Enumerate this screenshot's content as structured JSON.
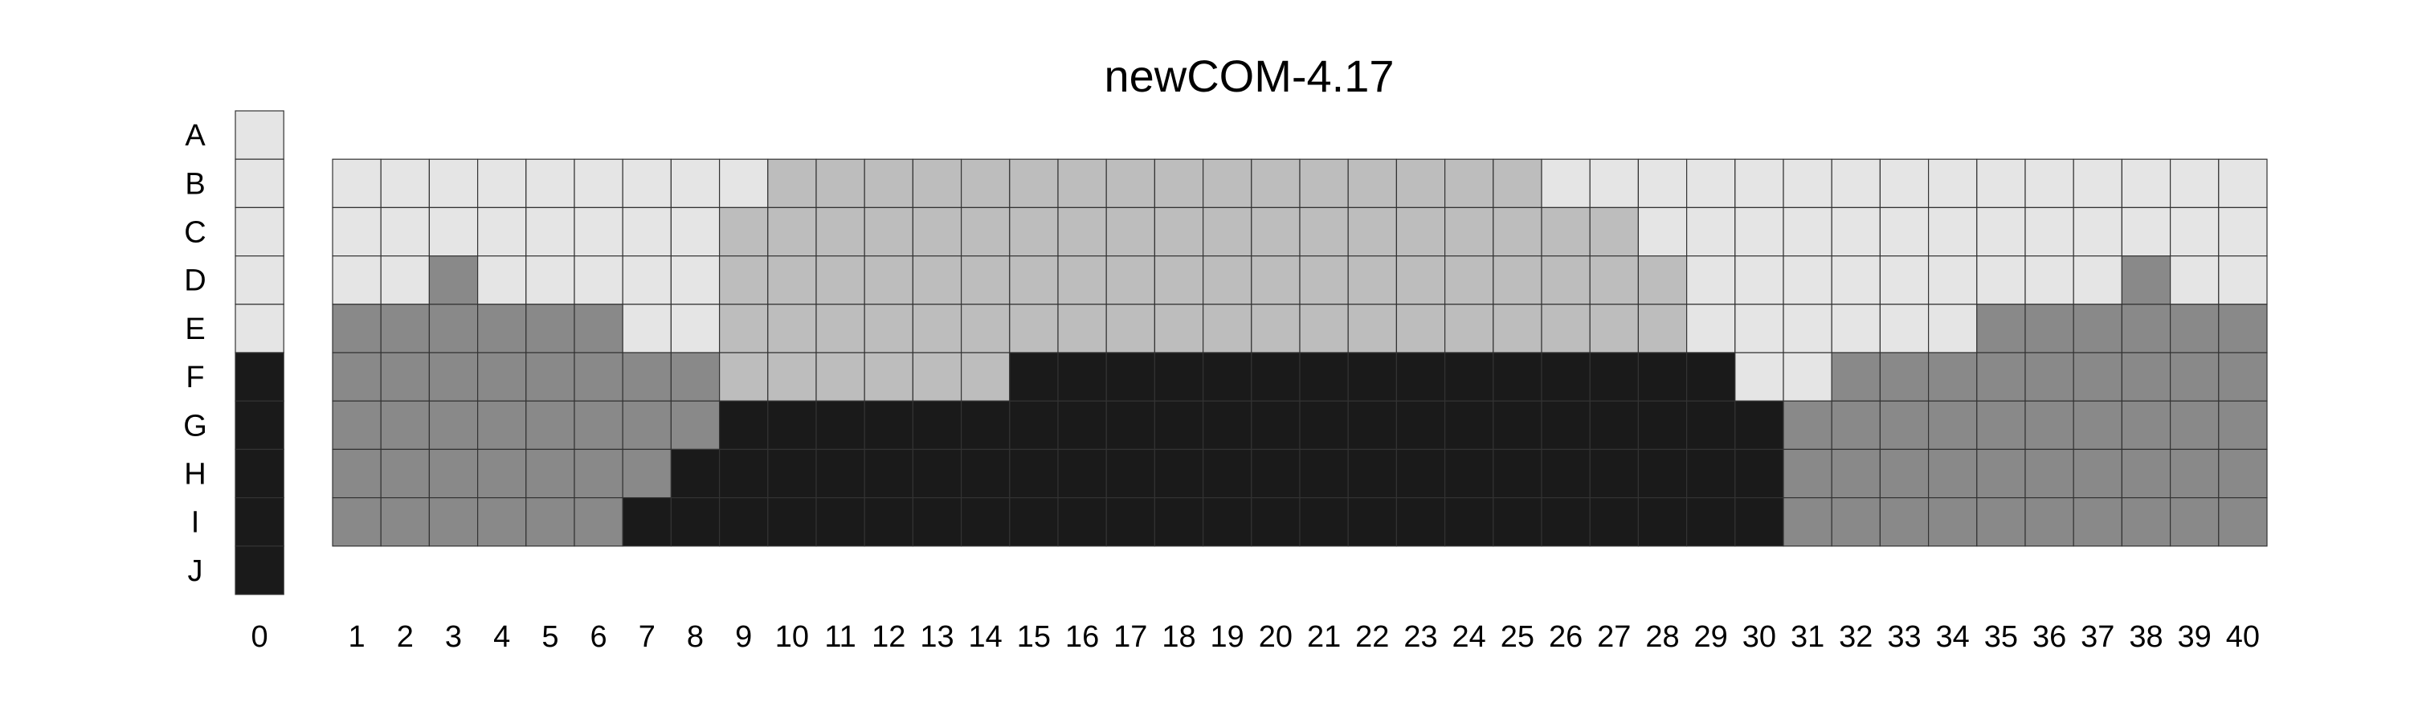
{
  "chart_data": {
    "type": "heatmap",
    "title": "newCOM-4.17",
    "row_labels": [
      "A",
      "B",
      "C",
      "D",
      "E",
      "F",
      "G",
      "H",
      "I",
      "J"
    ],
    "column_labels": [
      "1",
      "2",
      "3",
      "4",
      "5",
      "6",
      "7",
      "8",
      "9",
      "10",
      "11",
      "12",
      "13",
      "14",
      "15",
      "16",
      "17",
      "18",
      "19",
      "20",
      "21",
      "22",
      "23",
      "24",
      "25",
      "26",
      "27",
      "28",
      "29",
      "30",
      "31",
      "32",
      "33",
      "34",
      "35",
      "36",
      "37",
      "38",
      "39",
      "40"
    ],
    "legend_column_label": "0",
    "category_colors": {
      "1": "#e5e5e5",
      "2": "#bdbdbd",
      "3": "#898989",
      "4": "#1a1a1a"
    },
    "legend_column": [
      1,
      1,
      1,
      1,
      1,
      4,
      4,
      4,
      4,
      4
    ],
    "matrix_rows": [
      "B",
      "C",
      "D",
      "E",
      "F",
      "G",
      "H",
      "I"
    ],
    "matrix": [
      [
        1,
        1,
        1,
        1,
        1,
        1,
        1,
        1,
        1,
        2,
        2,
        2,
        2,
        2,
        2,
        2,
        2,
        2,
        2,
        2,
        2,
        2,
        2,
        2,
        2,
        1,
        1,
        1,
        1,
        1,
        1,
        1,
        1,
        1,
        1,
        1,
        1,
        1,
        1,
        1
      ],
      [
        1,
        1,
        1,
        1,
        1,
        1,
        1,
        1,
        2,
        2,
        2,
        2,
        2,
        2,
        2,
        2,
        2,
        2,
        2,
        2,
        2,
        2,
        2,
        2,
        2,
        2,
        2,
        1,
        1,
        1,
        1,
        1,
        1,
        1,
        1,
        1,
        1,
        1,
        1,
        1
      ],
      [
        1,
        1,
        3,
        1,
        1,
        1,
        1,
        1,
        2,
        2,
        2,
        2,
        2,
        2,
        2,
        2,
        2,
        2,
        2,
        2,
        2,
        2,
        2,
        2,
        2,
        2,
        2,
        2,
        1,
        1,
        1,
        1,
        1,
        1,
        1,
        1,
        1,
        3,
        1,
        1
      ],
      [
        3,
        3,
        3,
        3,
        3,
        3,
        1,
        1,
        2,
        2,
        2,
        2,
        2,
        2,
        2,
        2,
        2,
        2,
        2,
        2,
        2,
        2,
        2,
        2,
        2,
        2,
        2,
        2,
        1,
        1,
        1,
        1,
        1,
        1,
        3,
        3,
        3,
        3,
        3,
        3
      ],
      [
        3,
        3,
        3,
        3,
        3,
        3,
        3,
        3,
        2,
        2,
        2,
        2,
        2,
        2,
        4,
        4,
        4,
        4,
        4,
        4,
        4,
        4,
        4,
        4,
        4,
        4,
        4,
        4,
        4,
        1,
        1,
        3,
        3,
        3,
        3,
        3,
        3,
        3,
        3,
        3
      ],
      [
        3,
        3,
        3,
        3,
        3,
        3,
        3,
        3,
        4,
        4,
        4,
        4,
        4,
        4,
        4,
        4,
        4,
        4,
        4,
        4,
        4,
        4,
        4,
        4,
        4,
        4,
        4,
        4,
        4,
        4,
        3,
        3,
        3,
        3,
        3,
        3,
        3,
        3,
        3,
        3
      ],
      [
        3,
        3,
        3,
        3,
        3,
        3,
        3,
        4,
        4,
        4,
        4,
        4,
        4,
        4,
        4,
        4,
        4,
        4,
        4,
        4,
        4,
        4,
        4,
        4,
        4,
        4,
        4,
        4,
        4,
        4,
        3,
        3,
        3,
        3,
        3,
        3,
        3,
        3,
        3,
        3
      ],
      [
        3,
        3,
        3,
        3,
        3,
        3,
        4,
        4,
        4,
        4,
        4,
        4,
        4,
        4,
        4,
        4,
        4,
        4,
        4,
        4,
        4,
        4,
        4,
        4,
        4,
        4,
        4,
        4,
        4,
        4,
        3,
        3,
        3,
        3,
        3,
        3,
        3,
        3,
        3,
        3
      ]
    ]
  }
}
